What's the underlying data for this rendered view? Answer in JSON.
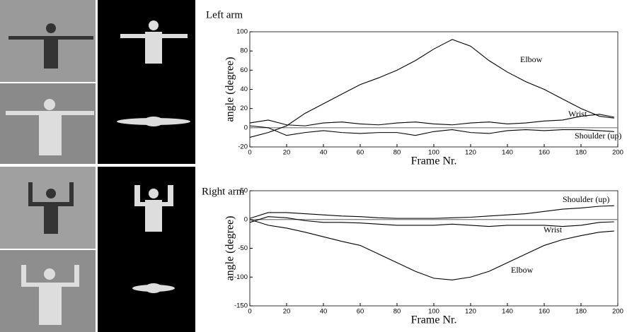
{
  "chart_data": [
    {
      "type": "line",
      "title": "Left arm",
      "x_label": "Frame Nr.",
      "y_label": "angle (degree)",
      "x": [
        0,
        10,
        20,
        30,
        40,
        50,
        60,
        70,
        80,
        90,
        100,
        110,
        120,
        130,
        140,
        150,
        160,
        170,
        180,
        190,
        198
      ],
      "series": [
        {
          "name": "Elbow",
          "color": "#000000",
          "values": [
            -10,
            -5,
            2,
            15,
            25,
            35,
            45,
            52,
            60,
            70,
            82,
            92,
            85,
            70,
            58,
            48,
            40,
            30,
            20,
            12,
            10
          ]
        },
        {
          "name": "Wrist",
          "color": "#000000",
          "values": [
            5,
            8,
            3,
            2,
            5,
            6,
            4,
            3,
            5,
            6,
            4,
            3,
            5,
            6,
            4,
            5,
            7,
            8,
            12,
            14,
            11
          ]
        },
        {
          "name": "Shoulder (up)",
          "color": "#000000",
          "values": [
            2,
            0,
            -8,
            -5,
            -3,
            -5,
            -6,
            -5,
            -5,
            -8,
            -4,
            -2,
            -5,
            -6,
            -3,
            -2,
            -3,
            -2,
            -2,
            -3,
            -4
          ]
        }
      ],
      "xlim": [
        0,
        200
      ],
      "xticks": [
        0,
        20,
        40,
        60,
        80,
        100,
        120,
        140,
        160,
        180,
        200
      ],
      "ylim": [
        -20,
        100
      ],
      "yticks": [
        -20,
        0,
        20,
        40,
        60,
        80,
        100
      ],
      "zero_line": true
    },
    {
      "type": "line",
      "title": "Right arm",
      "x_label": "Frame Nr.",
      "y_label": "angle (degree)",
      "x": [
        0,
        10,
        20,
        30,
        40,
        50,
        60,
        70,
        80,
        90,
        100,
        110,
        120,
        130,
        140,
        150,
        160,
        170,
        180,
        190,
        198
      ],
      "series": [
        {
          "name": "Shoulder (up)",
          "color": "#000000",
          "values": [
            2,
            12,
            12,
            10,
            8,
            6,
            5,
            3,
            2,
            2,
            2,
            3,
            4,
            6,
            8,
            10,
            14,
            18,
            20,
            23,
            24
          ]
        },
        {
          "name": "Wrist",
          "color": "#000000",
          "values": [
            -5,
            5,
            3,
            -2,
            -5,
            -5,
            -6,
            -8,
            -10,
            -10,
            -10,
            -8,
            -10,
            -12,
            -10,
            -10,
            -10,
            -12,
            -10,
            -5,
            -4
          ]
        },
        {
          "name": "Elbow",
          "color": "#000000",
          "values": [
            0,
            -10,
            -15,
            -22,
            -30,
            -38,
            -45,
            -60,
            -75,
            -90,
            -102,
            -105,
            -100,
            -90,
            -75,
            -60,
            -45,
            -35,
            -28,
            -22,
            -20
          ]
        }
      ],
      "xlim": [
        0,
        200
      ],
      "xticks": [
        0,
        20,
        40,
        60,
        80,
        100,
        120,
        140,
        160,
        180,
        200
      ],
      "ylim": [
        -150,
        50
      ],
      "yticks": [
        -150,
        -100,
        -50,
        0,
        50
      ],
      "zero_line": true
    }
  ]
}
